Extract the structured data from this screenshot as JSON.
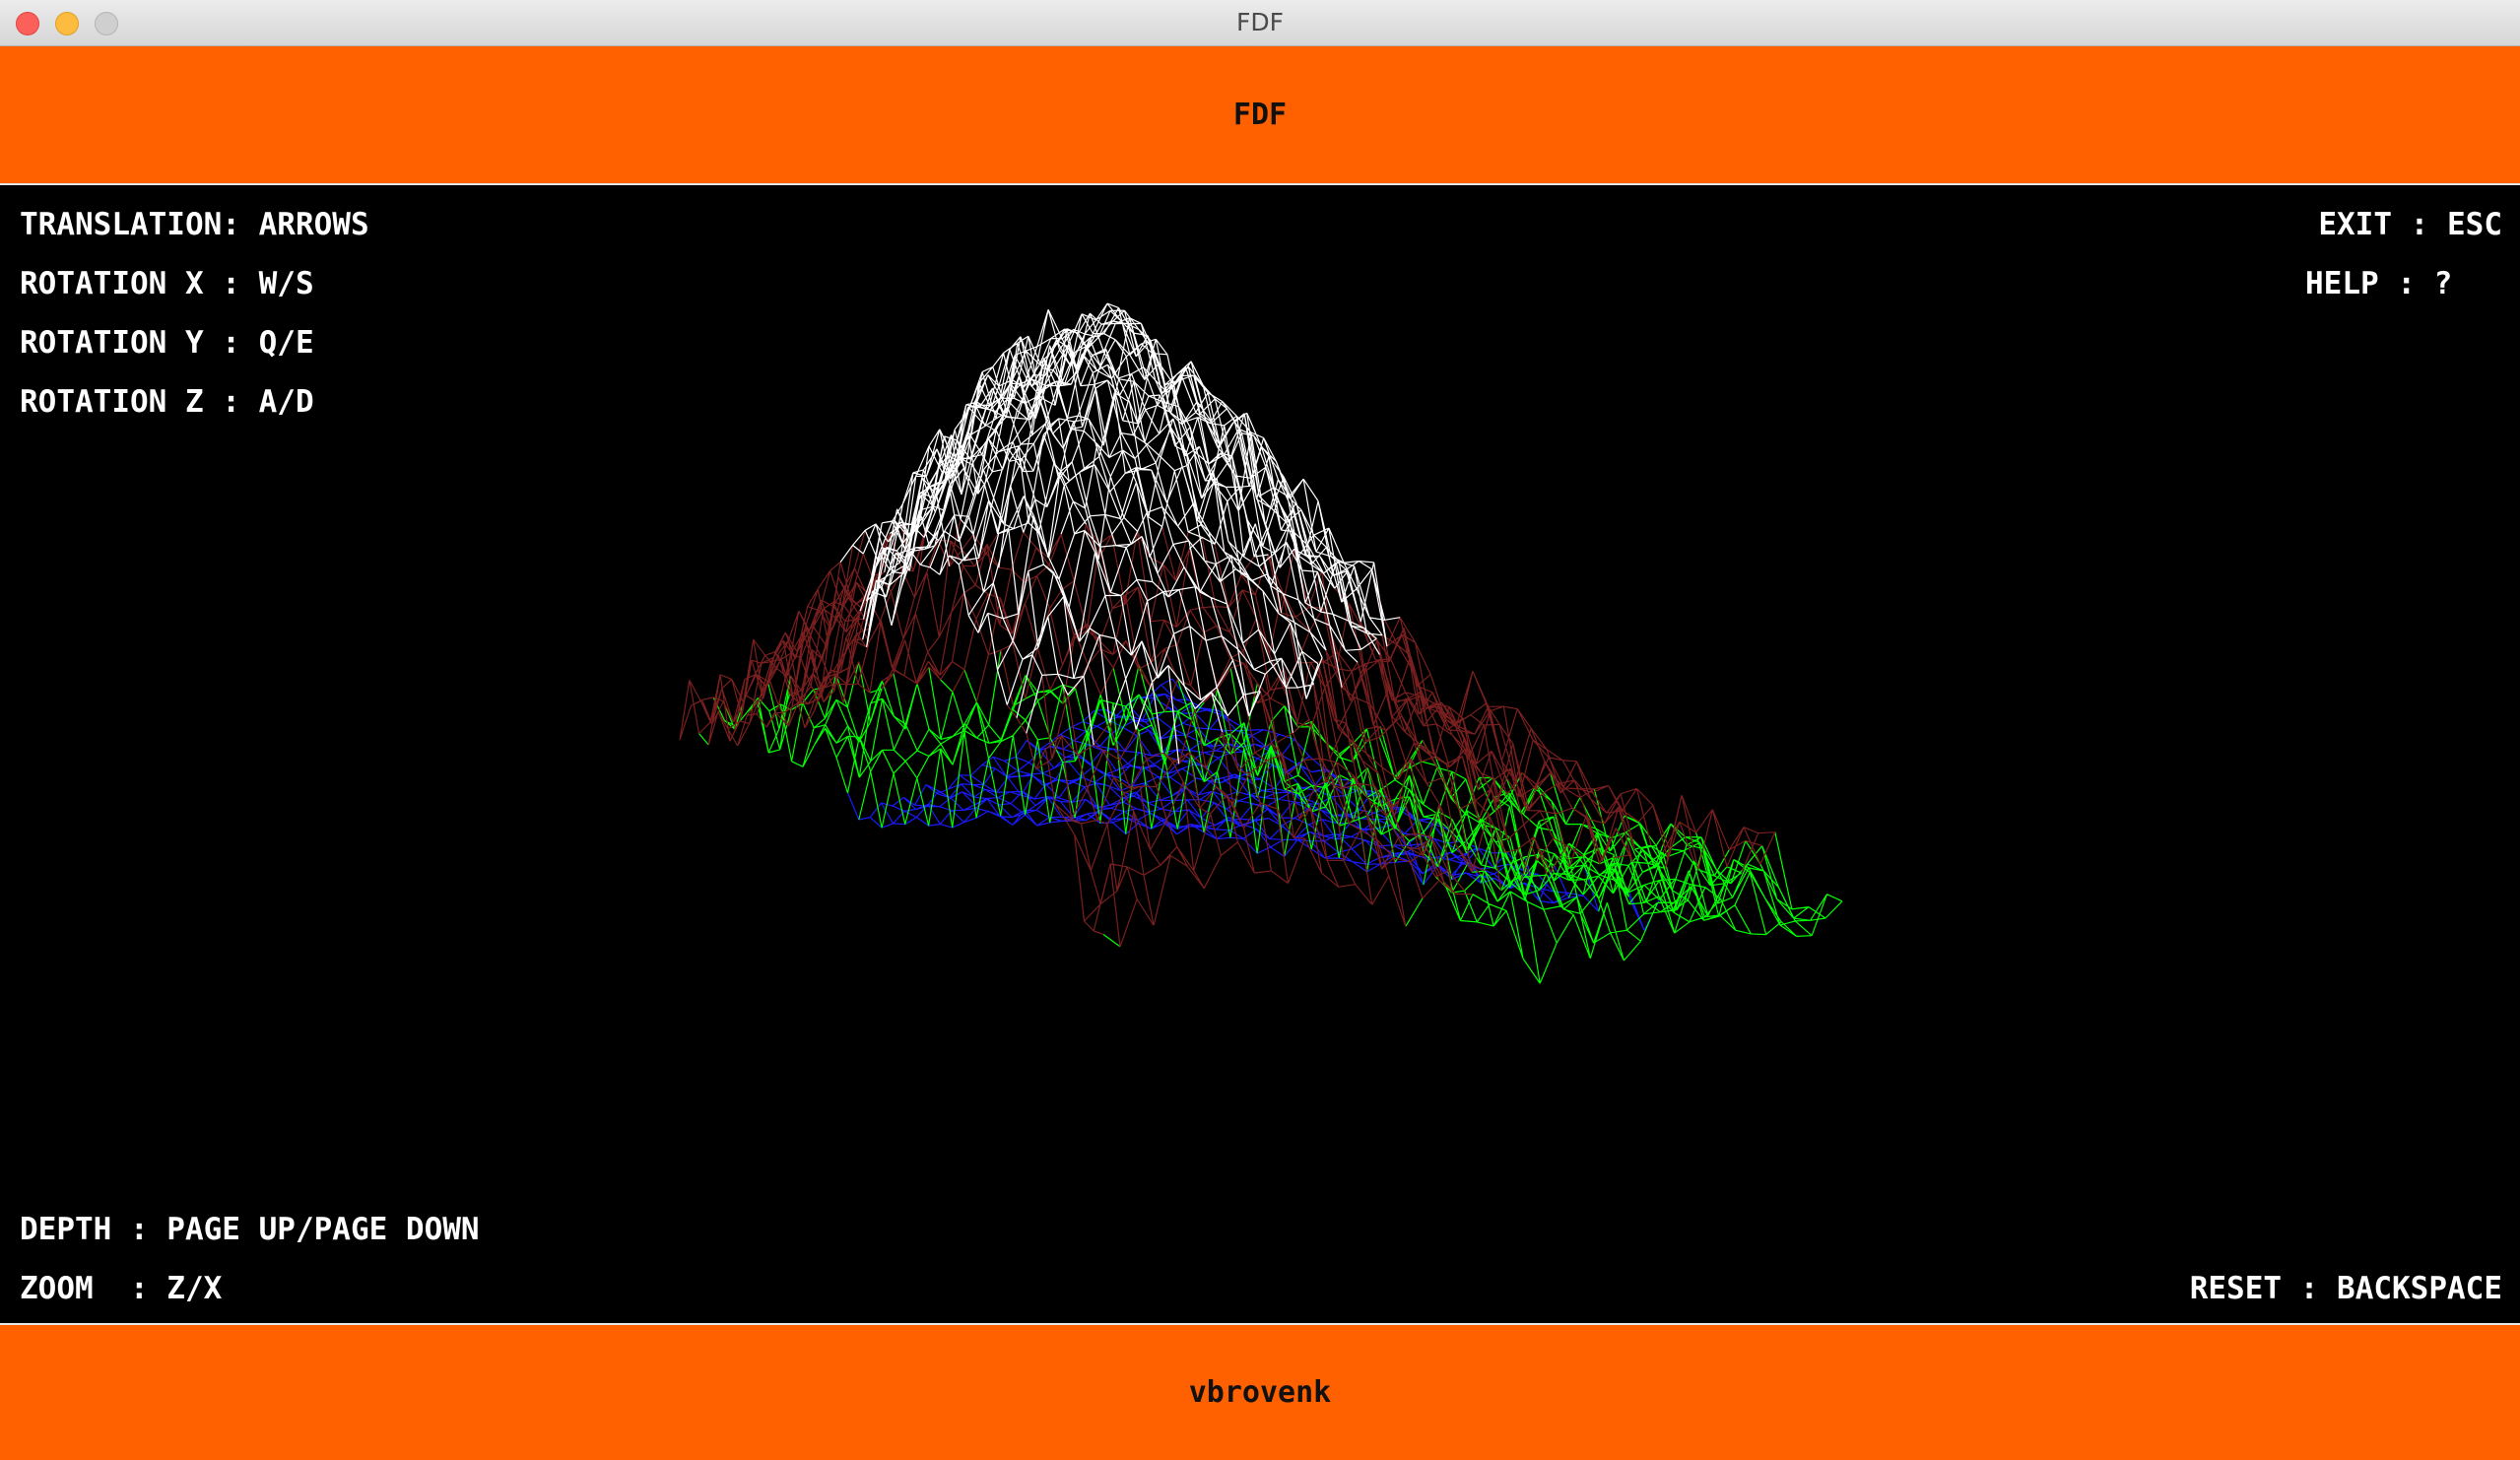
{
  "window": {
    "title": "FDF"
  },
  "header": {
    "title": "FDF"
  },
  "footer": {
    "author": "vbrovenk"
  },
  "controls": {
    "translation": "TRANSLATION: ARROWS",
    "rotation_x": "ROTATION X : W/S",
    "rotation_y": "ROTATION Y : Q/E",
    "rotation_z": "ROTATION Z : A/D",
    "exit": "EXIT : ESC",
    "help": "HELP : ?",
    "depth": "DEPTH : PAGE UP/PAGE DOWN",
    "zoom": "ZOOM  : Z/X",
    "reset": "RESET : BACKSPACE"
  },
  "colors": {
    "bar": "#ff6100",
    "background": "#000000",
    "low": "#1a1aff",
    "mid": "#00ff00",
    "high": "#7a1f1f",
    "peak": "#ffffff"
  }
}
